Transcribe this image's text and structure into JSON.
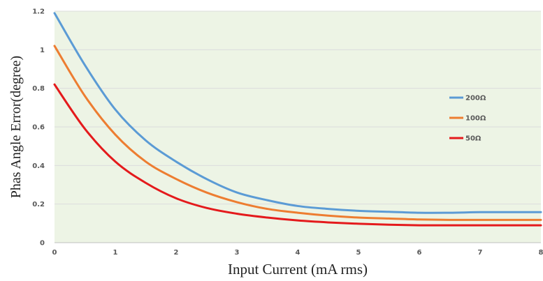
{
  "chart_data": {
    "type": "line",
    "xlabel": "Input Current (mA rms)",
    "ylabel": "Phas Angle Error(degree)",
    "xlim": [
      0,
      8
    ],
    "ylim": [
      0,
      1.2
    ],
    "x_ticks": [
      "0",
      "1",
      "2",
      "3",
      "4",
      "5",
      "6",
      "7",
      "8"
    ],
    "y_ticks": [
      "0",
      "0.2",
      "0.4",
      "0.6",
      "0.8",
      "1",
      "1.2"
    ],
    "grid": true,
    "legend_position": "right",
    "plot_background": "#edf4e5",
    "x": [
      0,
      0.5,
      1,
      1.5,
      2,
      2.5,
      3,
      3.5,
      4,
      4.5,
      5,
      5.5,
      6,
      6.5,
      7,
      7.5,
      8
    ],
    "series": [
      {
        "name": "200Ω",
        "color": "#5b9bd5",
        "values": [
          1.19,
          0.92,
          0.69,
          0.53,
          0.42,
          0.33,
          0.26,
          0.22,
          0.19,
          0.175,
          0.165,
          0.16,
          0.155,
          0.155,
          0.158,
          0.158,
          0.158
        ]
      },
      {
        "name": "100Ω",
        "color": "#ed7d31",
        "values": [
          1.02,
          0.76,
          0.56,
          0.42,
          0.33,
          0.26,
          0.21,
          0.175,
          0.155,
          0.14,
          0.13,
          0.125,
          0.12,
          0.118,
          0.118,
          0.118,
          0.118
        ]
      },
      {
        "name": "50Ω",
        "color": "#e41a1c",
        "values": [
          0.82,
          0.59,
          0.42,
          0.31,
          0.23,
          0.18,
          0.15,
          0.13,
          0.115,
          0.105,
          0.098,
          0.093,
          0.09,
          0.09,
          0.09,
          0.09,
          0.09
        ]
      }
    ]
  }
}
